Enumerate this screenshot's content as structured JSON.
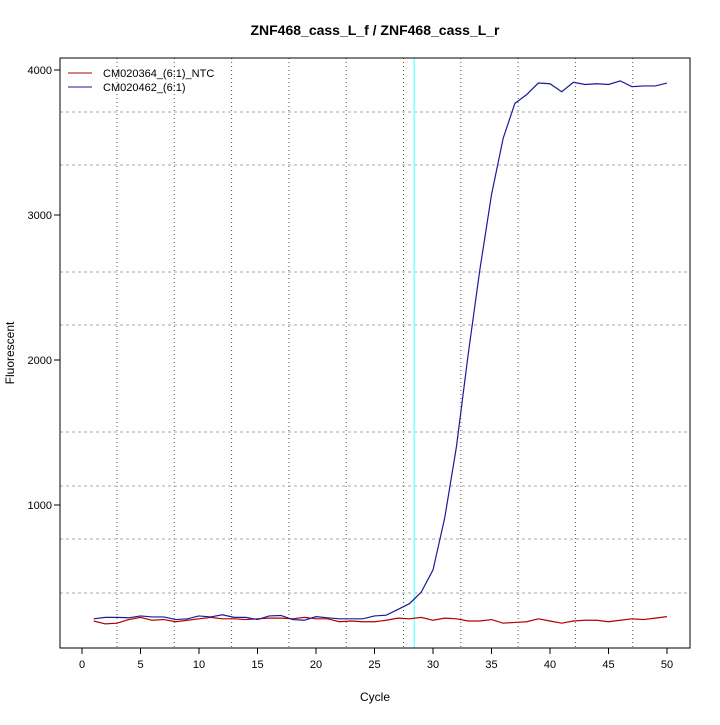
{
  "chart_data": {
    "type": "line",
    "title": "ZNF468_cass_L_f / ZNF468_cass_L_r",
    "xlabel": "Cycle",
    "ylabel": "Fluorescent",
    "xlim": [
      -2,
      52
    ],
    "ylim": [
      14,
      4083
    ],
    "x_ticks": [
      0,
      5,
      10,
      15,
      20,
      25,
      30,
      35,
      40,
      45,
      50
    ],
    "y_ticks": [
      1000,
      2000,
      3000,
      4000
    ],
    "grid": true,
    "legend_position": "top-left",
    "threshold_cycle": 28.4,
    "threshold_color": "#7fffff",
    "x": [
      1,
      2,
      3,
      4,
      5,
      6,
      7,
      8,
      9,
      10,
      11,
      12,
      13,
      14,
      15,
      16,
      17,
      18,
      19,
      20,
      21,
      22,
      23,
      24,
      25,
      26,
      27,
      28,
      29,
      30,
      31,
      32,
      33,
      34,
      35,
      36,
      37,
      38,
      39,
      40,
      41,
      42,
      43,
      44,
      45,
      46,
      47,
      48,
      49,
      50
    ],
    "series": [
      {
        "name": "CM020364_(6:1)_NTC",
        "color": "#b00000",
        "values": [
          200,
          180,
          185,
          210,
          225,
          205,
          210,
          195,
          205,
          215,
          225,
          215,
          215,
          210,
          215,
          220,
          220,
          215,
          225,
          215,
          215,
          195,
          200,
          195,
          195,
          205,
          220,
          215,
          225,
          205,
          220,
          215,
          200,
          200,
          210,
          185,
          190,
          195,
          215,
          200,
          185,
          200,
          205,
          205,
          195,
          205,
          215,
          210,
          220,
          230
        ]
      },
      {
        "name": "CM020462_(6:1)",
        "color": "#1a1a9a",
        "values": [
          215,
          225,
          225,
          222,
          235,
          228,
          228,
          210,
          215,
          235,
          228,
          243,
          225,
          225,
          210,
          235,
          238,
          210,
          205,
          230,
          222,
          215,
          215,
          215,
          235,
          240,
          280,
          320,
          400,
          552,
          910,
          1400,
          2035,
          2620,
          3140,
          3530,
          3770,
          3830,
          3910,
          3905,
          3850,
          3915,
          3900,
          3905,
          3900,
          3925,
          3885,
          3890,
          3890,
          3910
        ]
      }
    ]
  }
}
